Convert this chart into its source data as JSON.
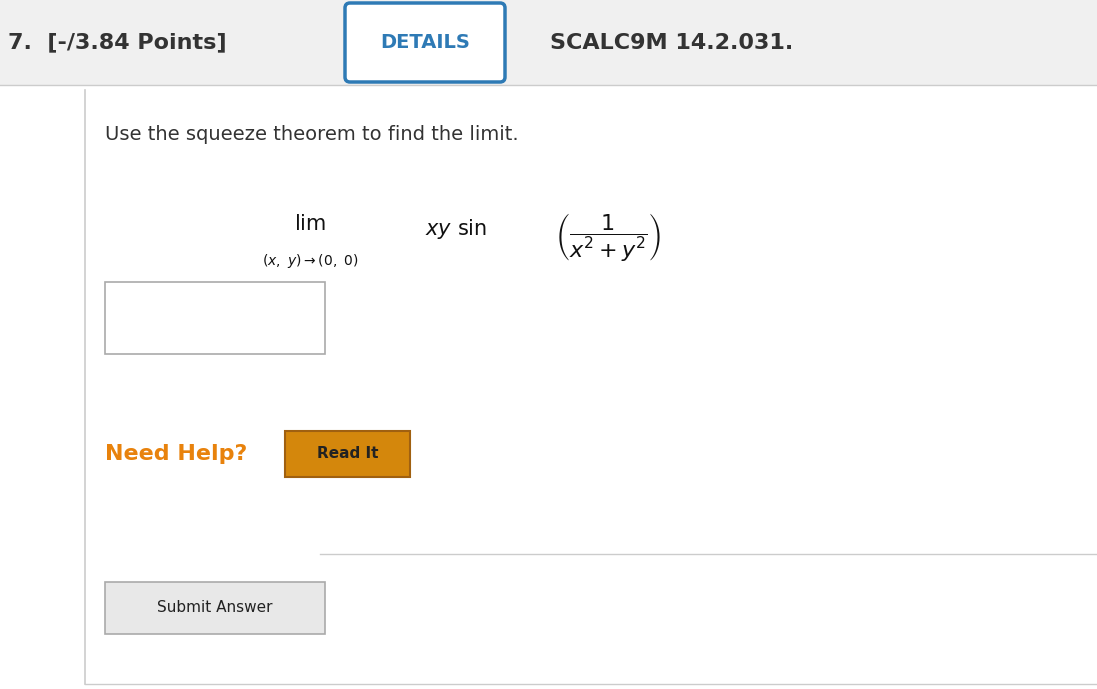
{
  "bg_color": "#f0f0f0",
  "white": "#ffffff",
  "header_bg": "#f0f0f0",
  "header_text_7": "7.  [-/3.84 Points]",
  "header_details": "DETAILS",
  "header_scalc": "SCALC9M 14.2.031.",
  "details_box_color": "#2e7ab5",
  "details_text_color": "#2e7ab5",
  "header_dark_color": "#333333",
  "body_text": "Use the squeeze theorem to find the limit.",
  "body_text_color": "#333333",
  "need_help_color": "#e8820c",
  "need_help_text": "Need Help?",
  "read_it_bg": "#d4870c",
  "read_it_border": "#a06010",
  "read_it_text": "Read It",
  "submit_text": "Submit Answer",
  "submit_bg": "#e8e8e8",
  "submit_border": "#aaaaaa",
  "divider_color": "#cccccc",
  "input_box_border": "#aaaaaa",
  "left_border_color": "#cccccc"
}
